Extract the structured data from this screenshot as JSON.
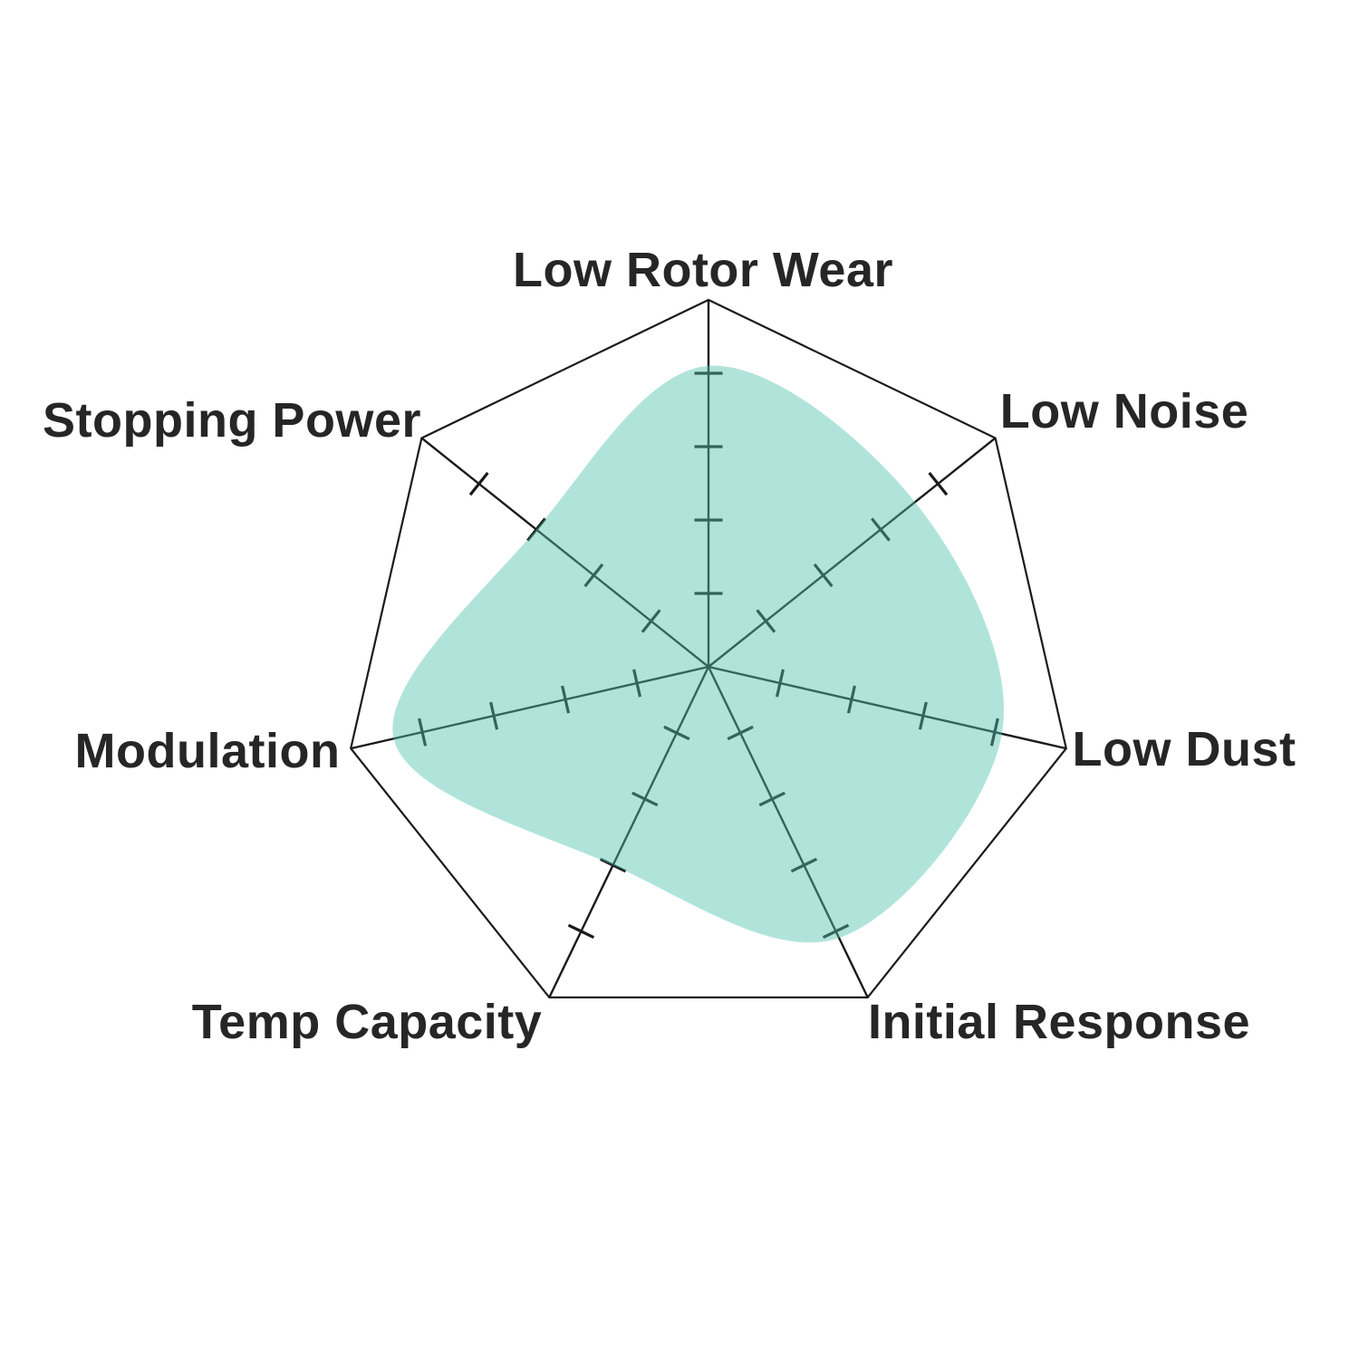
{
  "chart_data": {
    "type": "radar",
    "title": "",
    "categories": [
      "Low Rotor Wear",
      "Low Noise",
      "Low Dust",
      "Initial Response",
      "Temp Capacity",
      "Modulation",
      "Stopping Power"
    ],
    "values": [
      4.1,
      3.6,
      4.1,
      4.1,
      3.0,
      4.4,
      3.0
    ],
    "scale_min": 0,
    "scale_max": 5,
    "tick_step": 1,
    "ticks_per_axis": 4,
    "grid": "outer-polygon-only",
    "legend_position": "none",
    "colors": {
      "fill": "#4fc4ac",
      "fill_opacity": 0.45,
      "axis_line": "#1a1a1a",
      "outer_ring": "#1a1a1a",
      "label": "#262626",
      "background": "#ffffff"
    }
  }
}
